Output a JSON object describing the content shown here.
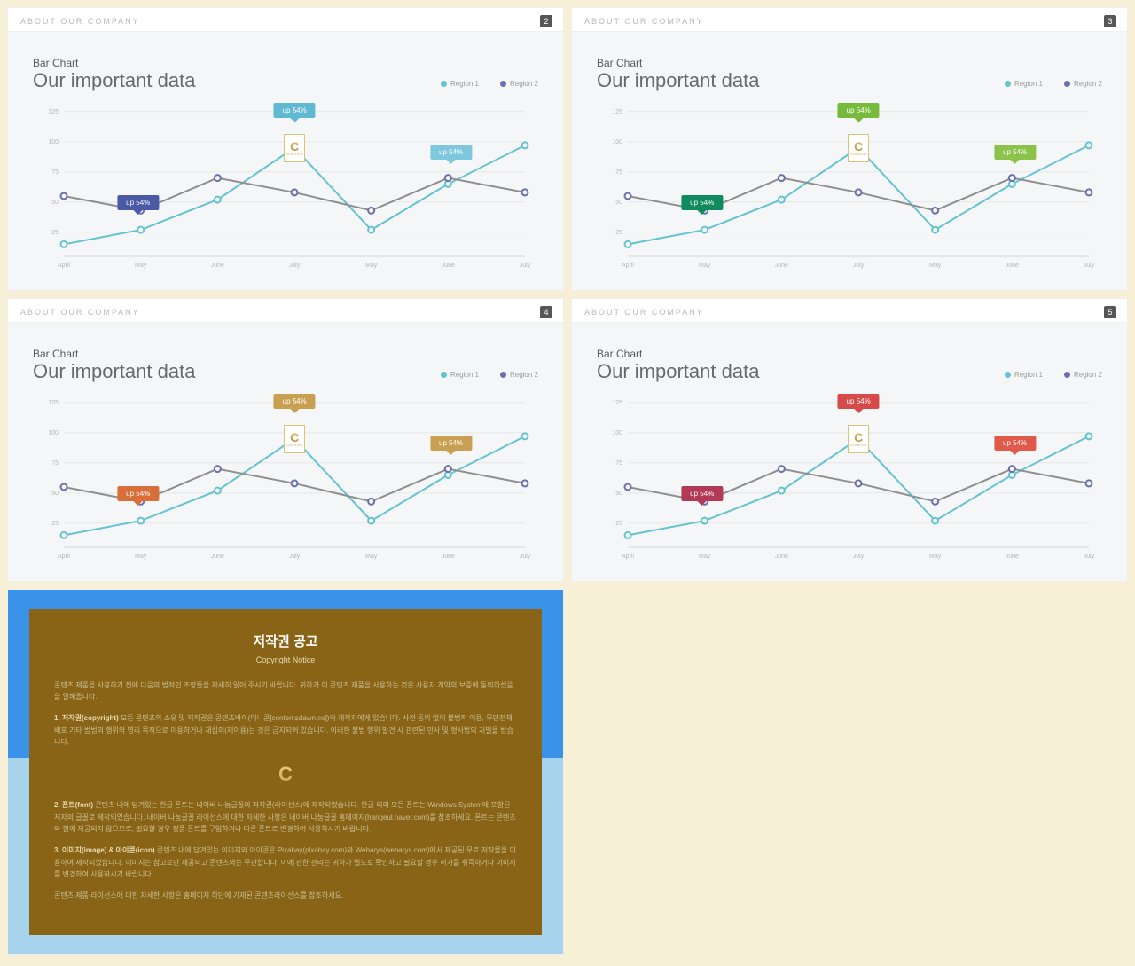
{
  "page_bg": "#f7efd6",
  "panel_header": {
    "title": "ABOUT OUR COMPANY",
    "title_color": "#b9b9b9",
    "badge_bg": "#565656",
    "badge_color": "#ffffff"
  },
  "chart_common": {
    "subtitle": "Bar Chart",
    "title": "Our important data",
    "title_color": "#6a6a6a",
    "legend": [
      {
        "label": "Region 1",
        "color": "#63c3d1"
      },
      {
        "label": "Region 2",
        "color": "#6b6fae"
      }
    ],
    "x_labels": [
      "April",
      "May",
      "June",
      "July",
      "May",
      "June",
      "July"
    ],
    "y_ticks": [
      25,
      50,
      75,
      100,
      125
    ],
    "y_min": 5,
    "y_max": 130,
    "series": [
      {
        "name": "Region 1",
        "color": "#63c3d1",
        "values": [
          15,
          27,
          52,
          95,
          27,
          65,
          97
        ]
      },
      {
        "name": "Region 2",
        "color": "#8f8f8f",
        "marker_color": "#6b6fae",
        "values": [
          55,
          43,
          70,
          58,
          43,
          70,
          58
        ]
      }
    ],
    "logo": {
      "x_index": 3,
      "y_value": 95
    },
    "background": "#f5f6f7",
    "grid_color": "#e7e7e7",
    "tooltips": [
      {
        "x_index": 1,
        "y_value": 43,
        "label": "up 54%"
      },
      {
        "x_index": 3,
        "y_value": 120,
        "label": "up 54%"
      },
      {
        "x_index": 5,
        "y_value": 85,
        "label": "up 54%"
      }
    ]
  },
  "panels": [
    {
      "badge": "2",
      "tip_colors": [
        "#4a5aa5",
        "#5fb9d2",
        "#7ec7de"
      ]
    },
    {
      "badge": "3",
      "tip_colors": [
        "#0f8b5f",
        "#76bb3c",
        "#8bc34a"
      ]
    },
    {
      "badge": "4",
      "tip_colors": [
        "#d86f3a",
        "#c9a052",
        "#c9a052"
      ]
    },
    {
      "badge": "5",
      "tip_colors": [
        "#b23a56",
        "#d64a4a",
        "#e05a4a"
      ]
    }
  ],
  "notice": {
    "bg_top": "#3a93e8",
    "bg_bottom": "#a7d4ec",
    "card_bg": "#8a6416",
    "title_ko": "저작권 공고",
    "title_en": "Copyright Notice",
    "intro": "콘텐츠 제품을 사용하기 전에 다음의 법적인 조항들을 자세히 읽어 주시기 바랍니다. 귀하가 이 콘텐츠 제품을 사용하는 것은 사용자 계약의 보증에 동의하셨음을 말해줍니다.",
    "s1_head": "1. 저작권(copyright)",
    "s1_body": "모든 콘텐츠의 소유 및 저작권은 콘텐츠바이(미니콘[contentsdawn.co])와 제작자에게 있습니다. 사전 동의 없이 불법적 이용, 무단전재, 배포 기타 범법의 행위와 영리 목적으로 이용하거나 재심의(재이용)는 것은 금지되어 있습니다. 이러한 불법 행위 발견 시 관련된 민사 및 형사법의 처벌을 받습니다.",
    "s1_underline": "것은 금지되어 있습니다.",
    "s2_head": "2. 폰트(font)",
    "s2_body": "콘텐츠 내에 담겨있는 한글 폰트는 네이버 나눔글꼴의 저작권(라이선스)에 제작되었습니다. 한글 외의 모든 폰트는 Windows System에 포함된 저자의 글꼴로 제작되었습니다. 네이버 나눔글꼴 라이선스에 대한 자세한 사항은 네이버 나눔글꼴 홈페이지(hangeul.naver.com)를 참조하세요. 폰트는 콘텐츠와 함께 제공되지 않으므로, 필요할 경우 정품 폰트를 구입하거나 다른 폰트로 변경하여 사용하시기 바랍니다.",
    "s3_head": "3. 이미지(image) & 아이콘(icon)",
    "s3_body": "콘텐츠 내에 담겨있는 이미지와 아이콘은 Pixabay(pixabay.com)와 Webarys(webarys.com)에서 제공된 무료 저작물을 이용하여 제작되었습니다. 이미지는 참고로만 제공되고 콘텐츠와는 무관합니다. 이에 관한 관리는 귀하가 별도로 확인하고 필요할 경우 허가를 취득하거나 이미지를 변경하여 사용하시기 바랍니다.",
    "outro": "콘텐츠 제품 라이선스에 대한 자세한 사항은 홈페이지 하단에 기재된 콘텐츠라이선스를 참조하세요."
  }
}
